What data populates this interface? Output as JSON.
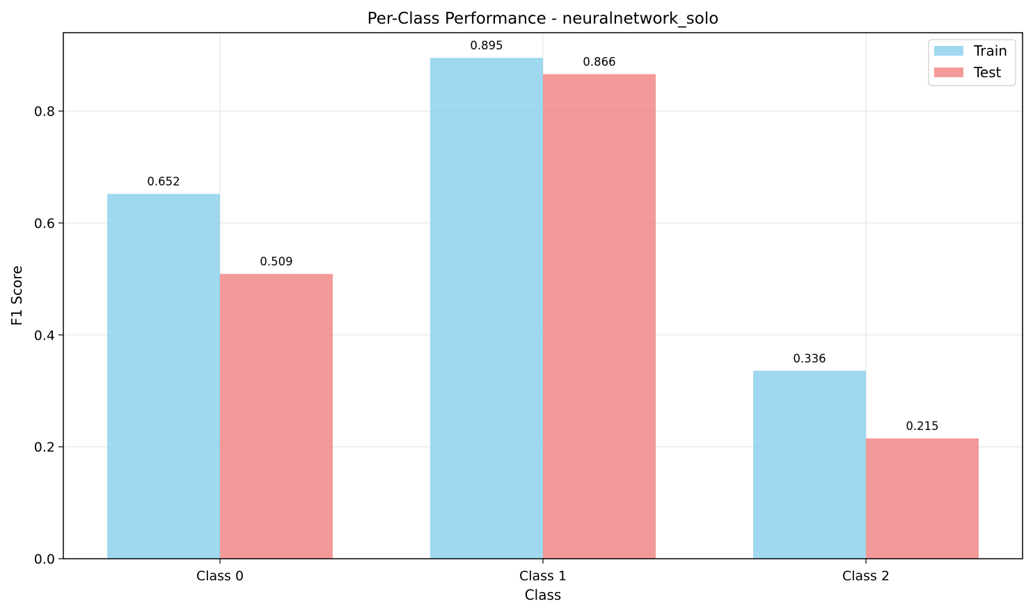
{
  "chart_data": {
    "type": "bar",
    "title": "Per-Class Performance - neuralnetwork_solo",
    "xlabel": "Class",
    "ylabel": "F1 Score",
    "categories": [
      "Class 0",
      "Class 1",
      "Class 2"
    ],
    "series": [
      {
        "name": "Train",
        "values": [
          0.652,
          0.895,
          0.336
        ],
        "labels": [
          "0.652",
          "0.895",
          "0.336"
        ],
        "color": "#87CEEB"
      },
      {
        "name": "Test",
        "values": [
          0.509,
          0.866,
          0.215
        ],
        "labels": [
          "0.509",
          "0.866",
          "0.215"
        ],
        "color": "#F08080"
      }
    ],
    "ylim": [
      0,
      0.94
    ],
    "yticks": [
      0.0,
      0.2,
      0.4,
      0.6,
      0.8
    ],
    "ytick_labels": [
      "0.0",
      "0.2",
      "0.4",
      "0.6",
      "0.8"
    ],
    "grid": true,
    "legend_position": "top-right"
  }
}
